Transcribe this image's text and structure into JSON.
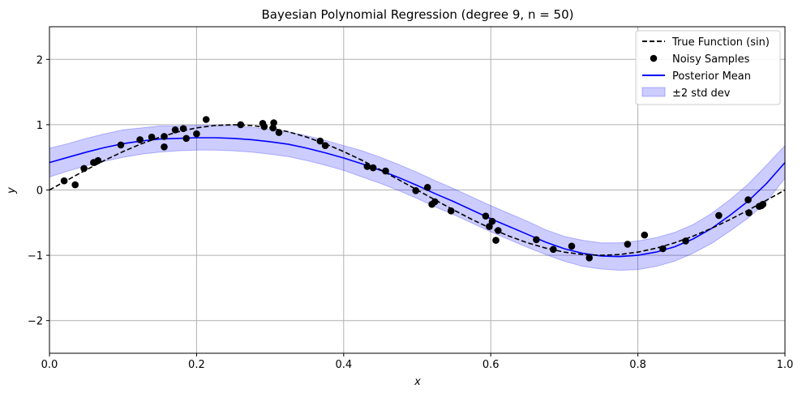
{
  "chart_data": {
    "type": "line",
    "title": "Bayesian Polynomial Regression (degree 9, n = 50)",
    "xlabel": "x",
    "ylabel": "y",
    "xlim": [
      0,
      1
    ],
    "ylim": [
      -2.5,
      2.5
    ],
    "xticks": [
      0.0,
      0.2,
      0.4,
      0.6,
      0.8,
      1.0
    ],
    "xtick_labels": [
      "0.0",
      "0.2",
      "0.4",
      "0.6",
      "0.8",
      "1.0"
    ],
    "yticks": [
      -2,
      -1,
      0,
      1,
      2
    ],
    "ytick_labels": [
      "−2",
      "−1",
      "0",
      "1",
      "2"
    ],
    "grid": true,
    "legend_position": "top-right",
    "series": [
      {
        "name": "True Function (sin)",
        "kind": "line",
        "style": "dashed",
        "color": "#000000",
        "x": [
          0,
          0.025,
          0.05,
          0.075,
          0.1,
          0.125,
          0.15,
          0.175,
          0.2,
          0.225,
          0.25,
          0.275,
          0.3,
          0.325,
          0.35,
          0.375,
          0.4,
          0.425,
          0.45,
          0.475,
          0.5,
          0.525,
          0.55,
          0.575,
          0.6,
          0.625,
          0.65,
          0.675,
          0.7,
          0.725,
          0.75,
          0.775,
          0.8,
          0.825,
          0.85,
          0.875,
          0.9,
          0.925,
          0.95,
          0.975,
          1
        ],
        "y": [
          0,
          0.156,
          0.309,
          0.454,
          0.588,
          0.707,
          0.809,
          0.891,
          0.951,
          0.988,
          1.0,
          0.988,
          0.951,
          0.891,
          0.809,
          0.707,
          0.588,
          0.454,
          0.309,
          0.156,
          0,
          -0.156,
          -0.309,
          -0.454,
          -0.588,
          -0.707,
          -0.809,
          -0.891,
          -0.951,
          -0.988,
          -1.0,
          -0.988,
          -0.951,
          -0.891,
          -0.809,
          -0.707,
          -0.588,
          -0.454,
          -0.309,
          -0.156,
          0
        ]
      },
      {
        "name": "Noisy Samples",
        "kind": "scatter",
        "color": "#000000",
        "x": [
          0.02,
          0.035,
          0.047,
          0.06,
          0.066,
          0.097,
          0.123,
          0.139,
          0.156,
          0.156,
          0.171,
          0.182,
          0.186,
          0.2,
          0.213,
          0.26,
          0.29,
          0.292,
          0.304,
          0.305,
          0.312,
          0.368,
          0.375,
          0.432,
          0.44,
          0.457,
          0.498,
          0.514,
          0.52,
          0.524,
          0.546,
          0.593,
          0.598,
          0.602,
          0.607,
          0.61,
          0.662,
          0.685,
          0.71,
          0.734,
          0.786,
          0.809,
          0.834,
          0.865,
          0.91,
          0.95,
          0.951,
          0.965,
          0.968,
          0.97
        ],
        "y": [
          0.14,
          0.08,
          0.33,
          0.42,
          0.45,
          0.69,
          0.77,
          0.81,
          0.66,
          0.82,
          0.92,
          0.94,
          0.79,
          0.86,
          1.08,
          1.0,
          1.02,
          0.97,
          0.95,
          1.03,
          0.88,
          0.75,
          0.68,
          0.36,
          0.34,
          0.29,
          -0.01,
          0.04,
          -0.22,
          -0.18,
          -0.32,
          -0.4,
          -0.56,
          -0.48,
          -0.77,
          -0.62,
          -0.76,
          -0.91,
          -0.86,
          -1.04,
          -0.83,
          -0.69,
          -0.9,
          -0.78,
          -0.39,
          -0.15,
          -0.35,
          -0.25,
          -0.24,
          -0.22
        ]
      },
      {
        "name": "Posterior Mean",
        "kind": "line",
        "style": "solid",
        "color": "#0000ff",
        "x": [
          0,
          0.025,
          0.05,
          0.075,
          0.1,
          0.125,
          0.15,
          0.175,
          0.2,
          0.225,
          0.25,
          0.275,
          0.3,
          0.325,
          0.35,
          0.375,
          0.4,
          0.425,
          0.45,
          0.475,
          0.5,
          0.525,
          0.55,
          0.575,
          0.6,
          0.625,
          0.65,
          0.675,
          0.7,
          0.725,
          0.75,
          0.775,
          0.8,
          0.825,
          0.85,
          0.875,
          0.9,
          0.925,
          0.95,
          0.975,
          1
        ],
        "y": [
          0.42,
          0.5,
          0.58,
          0.65,
          0.71,
          0.75,
          0.78,
          0.79,
          0.8,
          0.8,
          0.79,
          0.77,
          0.74,
          0.7,
          0.64,
          0.57,
          0.49,
          0.4,
          0.3,
          0.19,
          0.07,
          -0.06,
          -0.18,
          -0.31,
          -0.44,
          -0.56,
          -0.68,
          -0.8,
          -0.9,
          -0.97,
          -1.01,
          -1.02,
          -1.0,
          -0.95,
          -0.87,
          -0.75,
          -0.59,
          -0.39,
          -0.17,
          0.1,
          0.42
        ]
      },
      {
        "name": "±2 std dev",
        "kind": "band",
        "color": "#0000ff",
        "opacity": 0.2,
        "x": [
          0,
          0.025,
          0.05,
          0.075,
          0.1,
          0.125,
          0.15,
          0.175,
          0.2,
          0.225,
          0.25,
          0.275,
          0.3,
          0.325,
          0.35,
          0.375,
          0.4,
          0.425,
          0.45,
          0.475,
          0.5,
          0.525,
          0.55,
          0.575,
          0.6,
          0.625,
          0.65,
          0.675,
          0.7,
          0.725,
          0.75,
          0.775,
          0.8,
          0.825,
          0.85,
          0.875,
          0.9,
          0.925,
          0.95,
          0.975,
          1
        ],
        "lower": [
          0.2,
          0.29,
          0.37,
          0.44,
          0.5,
          0.55,
          0.58,
          0.6,
          0.61,
          0.61,
          0.6,
          0.58,
          0.55,
          0.51,
          0.45,
          0.38,
          0.3,
          0.2,
          0.1,
          -0.01,
          -0.13,
          -0.26,
          -0.38,
          -0.51,
          -0.64,
          -0.76,
          -0.88,
          -0.99,
          -1.09,
          -1.17,
          -1.21,
          -1.23,
          -1.22,
          -1.17,
          -1.09,
          -0.97,
          -0.82,
          -0.63,
          -0.43,
          -0.18,
          0.18
        ],
        "upper": [
          0.64,
          0.71,
          0.79,
          0.86,
          0.92,
          0.95,
          0.98,
          0.98,
          0.99,
          0.99,
          0.98,
          0.96,
          0.93,
          0.89,
          0.83,
          0.76,
          0.68,
          0.6,
          0.5,
          0.39,
          0.27,
          0.14,
          0.02,
          -0.11,
          -0.24,
          -0.36,
          -0.48,
          -0.61,
          -0.71,
          -0.77,
          -0.81,
          -0.81,
          -0.78,
          -0.73,
          -0.65,
          -0.53,
          -0.36,
          -0.15,
          0.09,
          0.38,
          0.68
        ]
      }
    ]
  }
}
